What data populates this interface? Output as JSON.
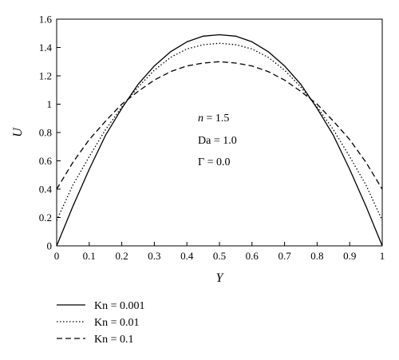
{
  "chart_data": {
    "type": "line",
    "xlabel": "Y",
    "ylabel": "U",
    "xlim": [
      0,
      1
    ],
    "ylim": [
      0,
      1.6
    ],
    "grid": false,
    "legend_position": "bottom-left",
    "x_ticks": [
      "0",
      "0.1",
      "0.2",
      "0.3",
      "0.4",
      "0.5",
      "0.6",
      "0.7",
      "0.8",
      "0.9",
      "1"
    ],
    "y_ticks": [
      "0",
      "0.2",
      "0.4",
      "0.6",
      "0.8",
      "1",
      "1.2",
      "1.4",
      "1.6"
    ],
    "annotations": [
      {
        "var": "n",
        "text": " = 1.5"
      },
      {
        "var": "",
        "text": "Da = 1.0"
      },
      {
        "var": "",
        "text": "Γ = 0.0"
      }
    ],
    "x": [
      0,
      0.05,
      0.1,
      0.15,
      0.2,
      0.25,
      0.3,
      0.35,
      0.4,
      0.45,
      0.5,
      0.55,
      0.6,
      0.65,
      0.7,
      0.75,
      0.8,
      0.85,
      0.9,
      0.95,
      1
    ],
    "series": [
      {
        "name": "Kn = 0.001",
        "style": "solid",
        "values": [
          0.0,
          0.28,
          0.54,
          0.78,
          0.97,
          1.14,
          1.27,
          1.37,
          1.44,
          1.48,
          1.49,
          1.48,
          1.44,
          1.37,
          1.27,
          1.14,
          0.97,
          0.78,
          0.54,
          0.28,
          0.0
        ]
      },
      {
        "name": "Kn = 0.01",
        "style": "dotted",
        "values": [
          0.18,
          0.43,
          0.63,
          0.82,
          0.98,
          1.12,
          1.24,
          1.33,
          1.39,
          1.42,
          1.43,
          1.42,
          1.39,
          1.33,
          1.24,
          1.12,
          0.98,
          0.82,
          0.63,
          0.43,
          0.18
        ]
      },
      {
        "name": "Kn = 0.1",
        "style": "dashed",
        "values": [
          0.4,
          0.59,
          0.75,
          0.88,
          1.0,
          1.09,
          1.17,
          1.23,
          1.27,
          1.29,
          1.3,
          1.29,
          1.27,
          1.23,
          1.17,
          1.09,
          1.0,
          0.88,
          0.75,
          0.59,
          0.4
        ]
      }
    ]
  }
}
